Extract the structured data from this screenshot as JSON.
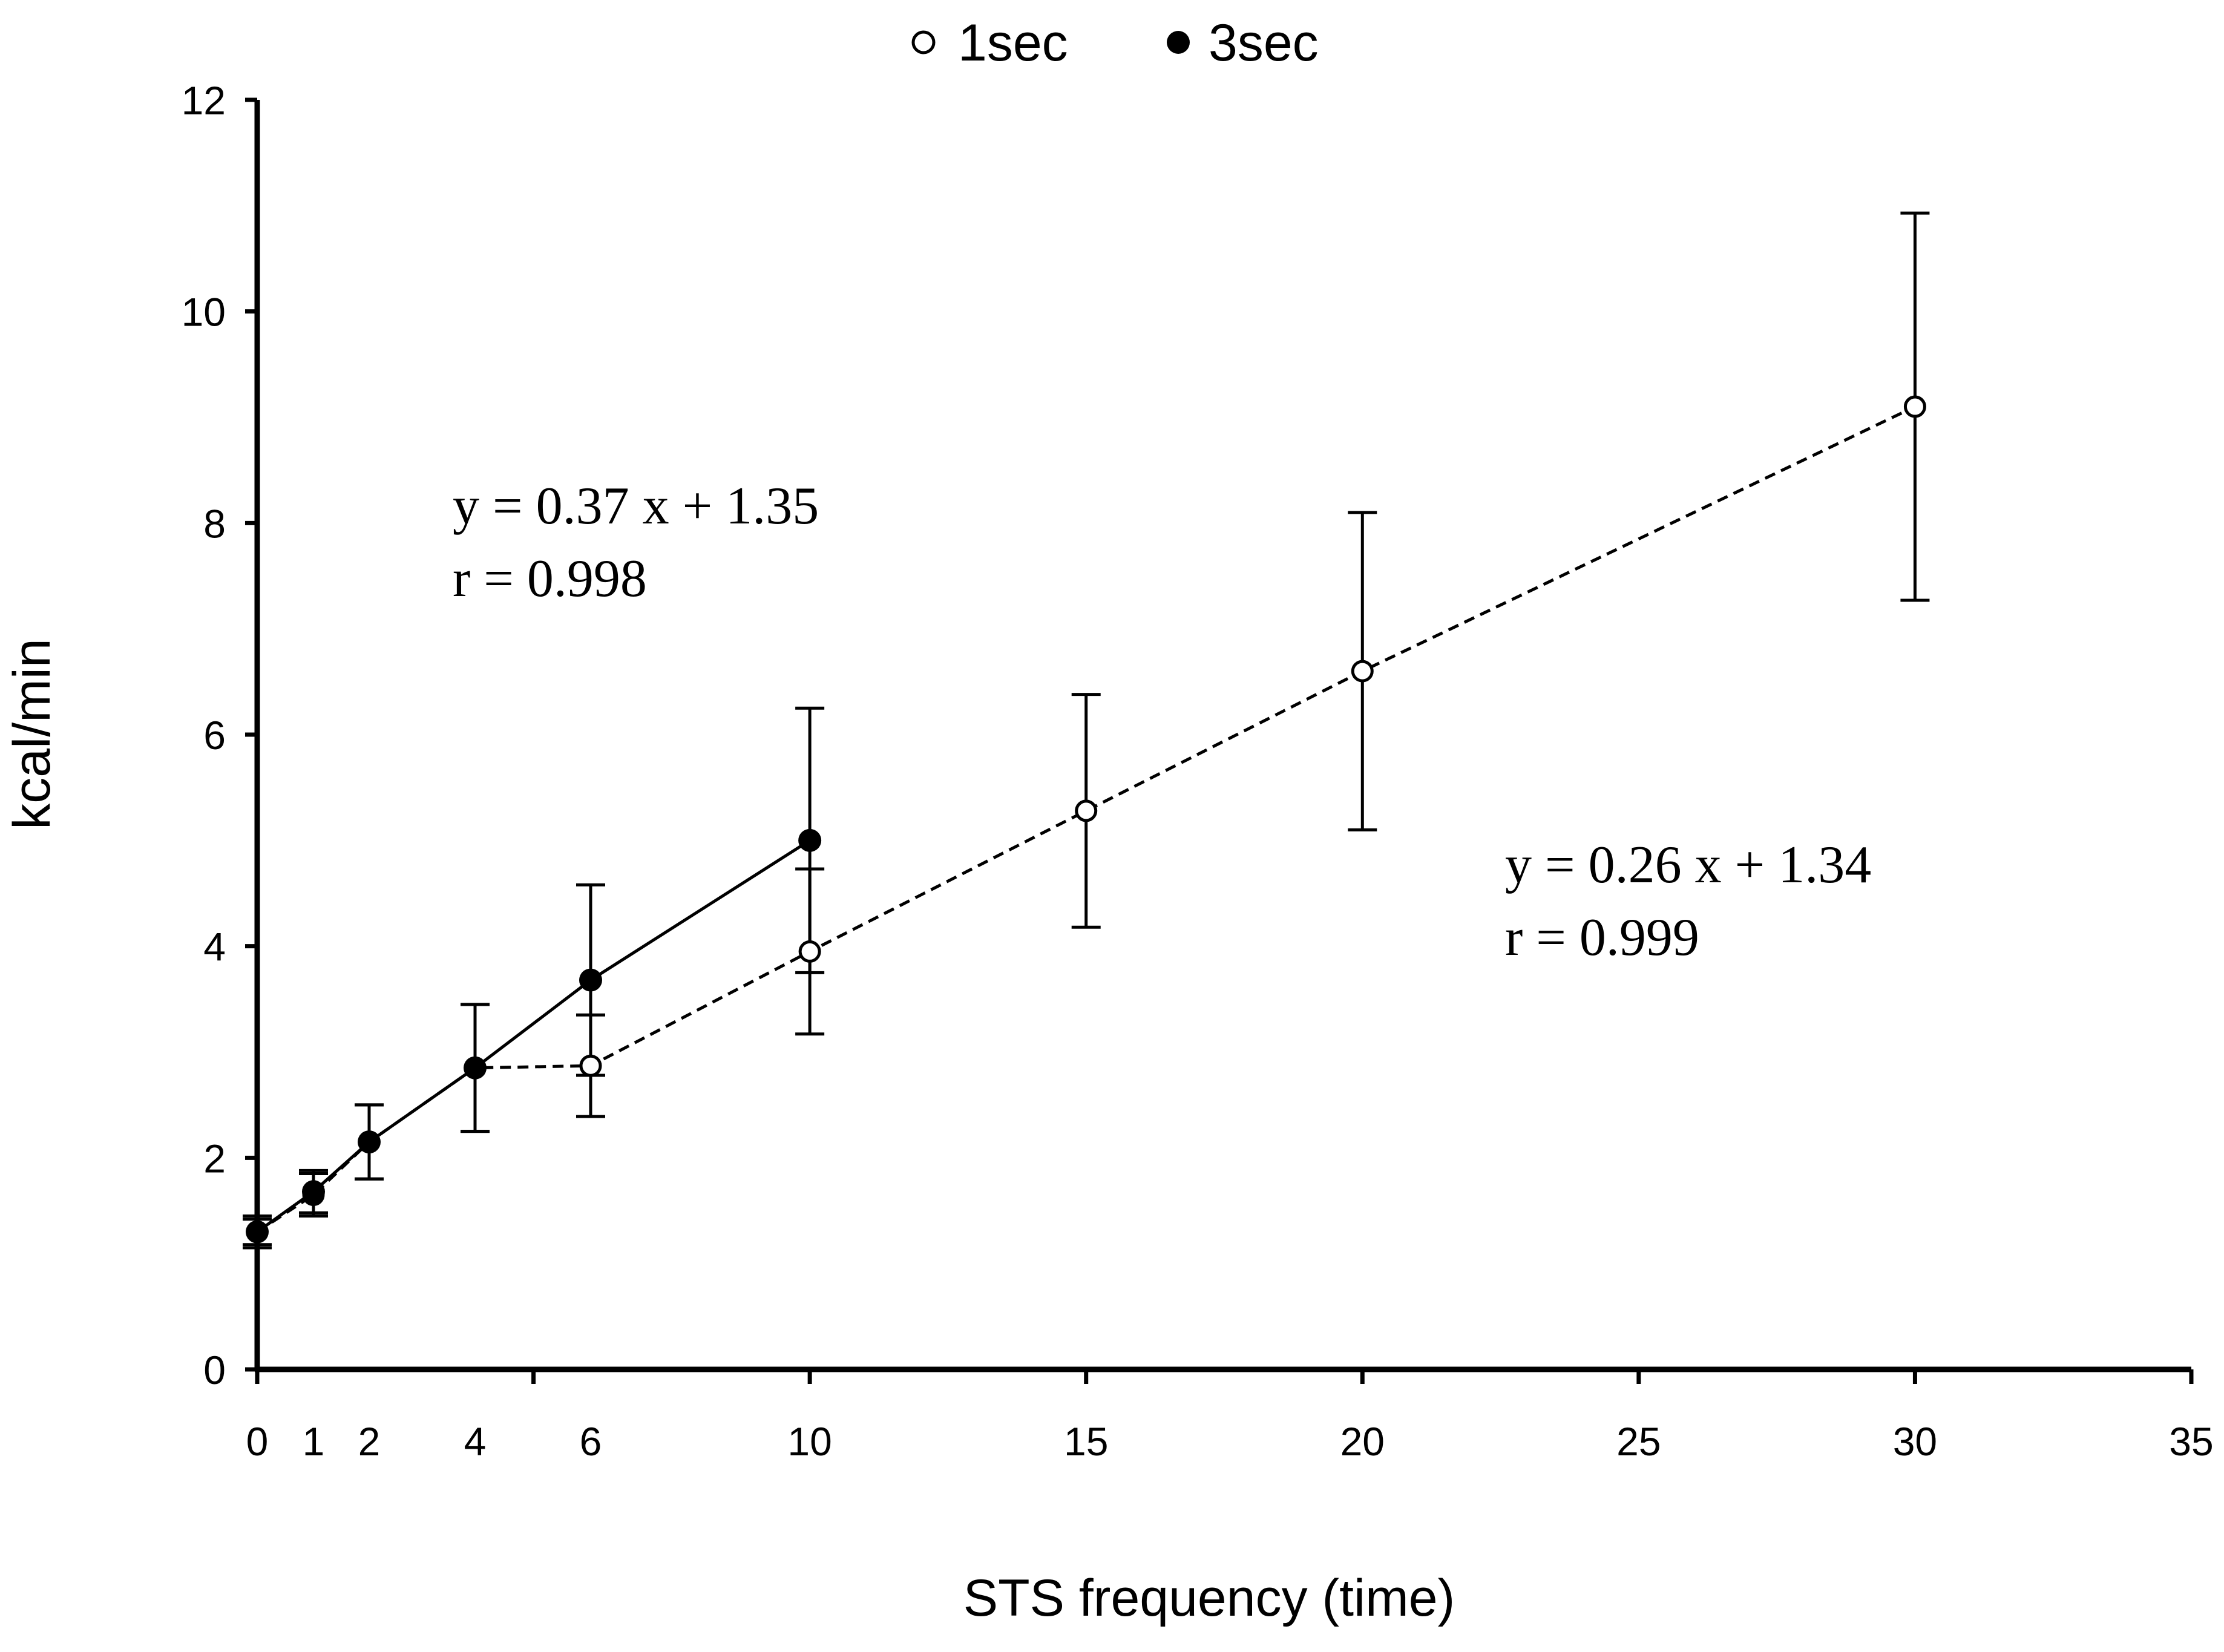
{
  "chart_data": {
    "type": "scatter",
    "title": "",
    "xlabel": "STS frequency (time)",
    "ylabel": "kcal/min",
    "xlim": [
      0,
      35
    ],
    "ylim": [
      0,
      12
    ],
    "x_tick_labels": [
      0,
      1,
      2,
      4,
      6,
      10,
      15,
      20,
      25,
      30,
      35
    ],
    "x_major_ticks": [
      0,
      5,
      10,
      15,
      20,
      25,
      30,
      35
    ],
    "y_ticks": [
      0,
      2,
      4,
      6,
      8,
      10,
      12
    ],
    "grid": false,
    "legend_position": "top-center",
    "series": [
      {
        "name": "1sec",
        "marker": "open-circle",
        "line_style": "dashed",
        "color": "#000000",
        "x": [
          0,
          1,
          2,
          4,
          6,
          10,
          15,
          20,
          30
        ],
        "y": [
          1.3,
          1.65,
          2.15,
          2.85,
          2.87,
          3.95,
          5.28,
          6.6,
          9.1
        ],
        "error": [
          0.15,
          0.2,
          0.35,
          0.6,
          0.48,
          0.78,
          1.1,
          1.5,
          1.83
        ]
      },
      {
        "name": "3sec",
        "marker": "filled-circle",
        "line_style": "solid",
        "color": "#000000",
        "x": [
          0,
          1,
          2,
          4,
          6,
          10
        ],
        "y": [
          1.3,
          1.68,
          2.15,
          2.85,
          3.68,
          5.0
        ],
        "error": [
          0.12,
          0.2,
          0.35,
          0.6,
          0.9,
          1.25
        ]
      }
    ],
    "annotations": [
      {
        "id": "fit-3sec",
        "lines": [
          "y = 0.37 x + 1.35",
          "r = 0.998"
        ]
      },
      {
        "id": "fit-1sec",
        "lines": [
          "y = 0.26 x + 1.34",
          "r = 0.999"
        ]
      }
    ]
  }
}
